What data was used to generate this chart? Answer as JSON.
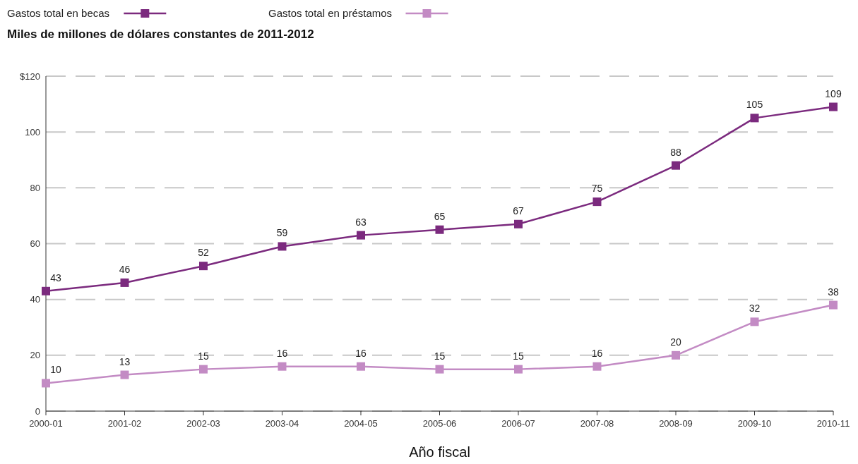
{
  "chart_data": {
    "type": "line",
    "title": "Miles de millones de dólares constantes de 2011-2012",
    "xlabel": "Año fiscal",
    "categories": [
      "2000-01",
      "2001-02",
      "2002-03",
      "2003-04",
      "2004-05",
      "2005-06",
      "2006-07",
      "2007-08",
      "2008-09",
      "2009-10",
      "2010-11"
    ],
    "series": [
      {
        "name": "Gastos total en becas",
        "color": "#7b2a7e",
        "values": [
          43,
          46,
          52,
          59,
          63,
          65,
          67,
          75,
          88,
          105,
          109
        ]
      },
      {
        "name": "Gastos total en préstamos",
        "color": "#c38bc4",
        "values": [
          10,
          13,
          15,
          16,
          16,
          15,
          15,
          16,
          20,
          32,
          38
        ]
      }
    ],
    "ylim": [
      0,
      120
    ],
    "yticks": [
      0,
      20,
      40,
      60,
      80,
      100,
      {
        "value": 120,
        "label": "$120"
      }
    ],
    "grid": "y",
    "legend": "top left",
    "marker": "square",
    "line_style": "solid",
    "data_labels": true
  }
}
